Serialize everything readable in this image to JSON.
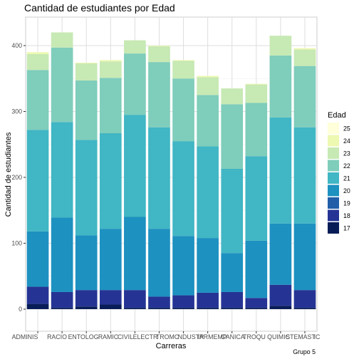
{
  "chart_data": {
    "type": "bar",
    "stacked": true,
    "title": "Cantidad de estudiantes por Edad",
    "xlabel": "Carreras",
    "ylabel": "Cantidad de estudiantes",
    "caption": "Grupo 5",
    "ylim": [
      0,
      440
    ],
    "yticks": [
      0,
      100,
      200,
      300,
      400
    ],
    "grid": true,
    "legend_position": "right",
    "legend_title": "Edad",
    "categories": [
      "ADMINISTRACION",
      "AGRONOMIA",
      "ARQUITECTURA",
      "CIVIL",
      "ELECTRICA",
      "ELECTRONICA",
      "INDUSTRIAL",
      "INFORMATICA",
      "MECANICA",
      "PETROLEO",
      "QUIMICA",
      "SISTEMAS"
    ],
    "category_labels_shown": [
      "ADMINIS",
      "RACIO",
      "ENTOLOG",
      "RAMIC",
      "CIVIL",
      "ELECTR",
      "TROMC",
      "NDUSTR",
      "IARMEMP",
      "CANICA",
      "TROQU",
      "QUIMIC",
      "STEMAST",
      "IC"
    ],
    "series": [
      {
        "name": "17",
        "color": "#081d58",
        "values": [
          8,
          2,
          4,
          7,
          2,
          2,
          2,
          2,
          2,
          2,
          5,
          2
        ]
      },
      {
        "name": "18",
        "color": "#253494",
        "values": [
          26,
          24,
          25,
          22,
          27,
          17,
          19,
          23,
          24,
          15,
          32,
          27
        ]
      },
      {
        "name": "19",
        "color": "#225ea8",
        "values": [
          0,
          0,
          0,
          0,
          0,
          0,
          0,
          0,
          0,
          0,
          0,
          0
        ]
      },
      {
        "name": "20",
        "color": "#1d91c0",
        "values": [
          84,
          113,
          83,
          93,
          111,
          103,
          90,
          83,
          59,
          87,
          93,
          101
        ]
      },
      {
        "name": "21",
        "color": "#41b6c4",
        "values": [
          154,
          145,
          145,
          145,
          155,
          154,
          144,
          139,
          128,
          128,
          161,
          146
        ]
      },
      {
        "name": "22",
        "color": "#7fcdbb",
        "values": [
          91,
          113,
          90,
          84,
          93,
          99,
          95,
          78,
          98,
          81,
          94,
          93
        ]
      },
      {
        "name": "23",
        "color": "#c7e9b4",
        "values": [
          24,
          23,
          26,
          25,
          20,
          24,
          27,
          27,
          24,
          28,
          30,
          25
        ]
      },
      {
        "name": "24",
        "color": "#edf8b1",
        "values": [
          3,
          0,
          1,
          2,
          0,
          1,
          1,
          2,
          0,
          1,
          0,
          2
        ]
      },
      {
        "name": "25",
        "color": "#ffffd9",
        "values": [
          0,
          0,
          0,
          0,
          0,
          0,
          0,
          0,
          0,
          0,
          0,
          0
        ]
      }
    ],
    "legend_order": [
      "25",
      "24",
      "23",
      "22",
      "21",
      "20",
      "19",
      "18",
      "17"
    ]
  }
}
